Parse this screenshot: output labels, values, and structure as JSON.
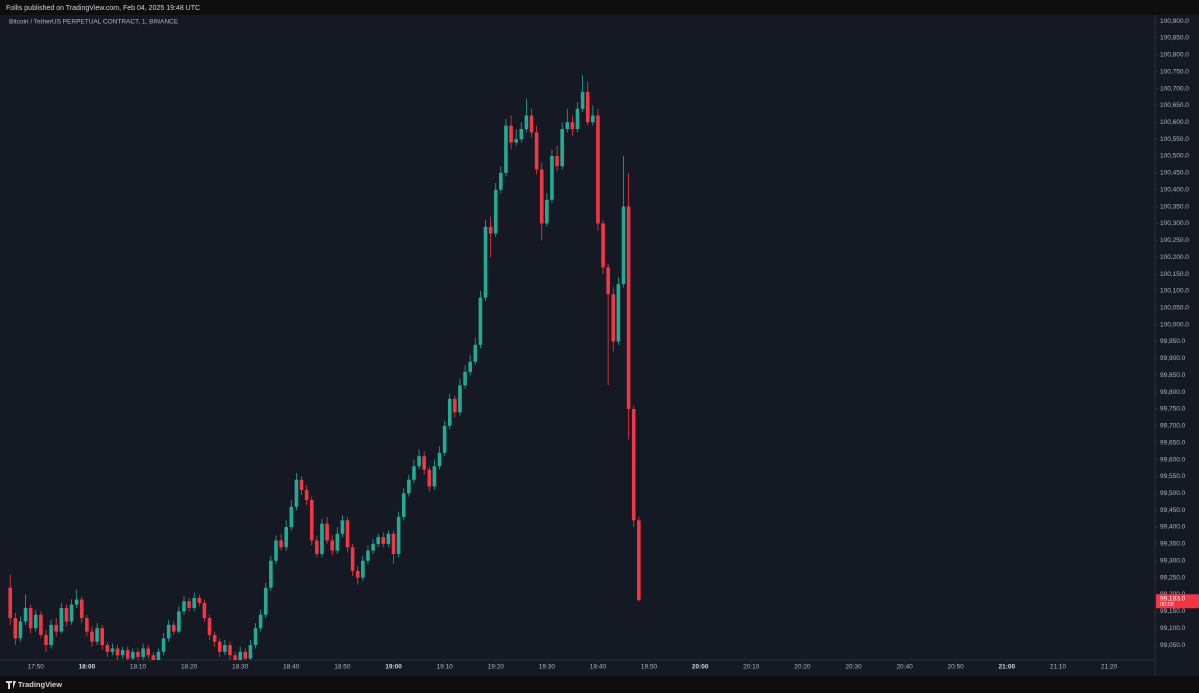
{
  "chart_data": {
    "type": "candlestick",
    "publisher": "Follis published on TradingView.com, Feb 04, 2025 19:48 UTC",
    "title": "Bitcoin / TetherUS PERPETUAL CONTRACT, 1, BINANCE",
    "brand": "TradingView",
    "up_color": "#22ab94",
    "down_color": "#f23645",
    "x": [
      "17:45",
      "17:46",
      "17:47",
      "17:48",
      "17:49",
      "17:50",
      "17:51",
      "17:52",
      "17:53",
      "17:54",
      "17:55",
      "17:56",
      "17:57",
      "17:58",
      "17:59",
      "18:00",
      "18:01",
      "18:02",
      "18:03",
      "18:04",
      "18:05",
      "18:06",
      "18:07",
      "18:08",
      "18:09",
      "18:10",
      "18:11",
      "18:12",
      "18:13",
      "18:14",
      "18:15",
      "18:16",
      "18:17",
      "18:18",
      "18:19",
      "18:20",
      "18:21",
      "18:22",
      "18:23",
      "18:24",
      "18:25",
      "18:26",
      "18:27",
      "18:28",
      "18:29",
      "18:30",
      "18:31",
      "18:32",
      "18:33",
      "18:34",
      "18:35",
      "18:36",
      "18:37",
      "18:38",
      "18:39",
      "18:40",
      "18:41",
      "18:42",
      "18:43",
      "18:44",
      "18:45",
      "18:46",
      "18:47",
      "18:48",
      "18:49",
      "18:50",
      "18:51",
      "18:52",
      "18:53",
      "18:54",
      "18:55",
      "18:56",
      "18:57",
      "18:58",
      "18:59",
      "19:00",
      "19:01",
      "19:02",
      "19:03",
      "19:04",
      "19:05",
      "19:06",
      "19:07",
      "19:08",
      "19:09",
      "19:10",
      "19:11",
      "19:12",
      "19:13",
      "19:14",
      "19:15",
      "19:16",
      "19:17",
      "19:18",
      "19:19",
      "19:20",
      "19:21",
      "19:22",
      "19:23",
      "19:24",
      "19:25",
      "19:26",
      "19:27",
      "19:28",
      "19:29",
      "19:30",
      "19:31",
      "19:32",
      "19:33",
      "19:34",
      "19:35",
      "19:36",
      "19:37",
      "19:38",
      "19:39",
      "19:40",
      "19:41",
      "19:42",
      "19:43",
      "19:44",
      "19:45",
      "19:46",
      "19:47",
      "19:48"
    ],
    "open": [
      99220,
      99130,
      99070,
      99120,
      99160,
      99100,
      99140,
      99080,
      99050,
      99110,
      99090,
      99160,
      99120,
      99170,
      99185,
      99130,
      99090,
      99060,
      99100,
      99050,
      99030,
      99040,
      99020,
      99035,
      99010,
      99030,
      99015,
      99040,
      99020,
      99000,
      99030,
      99070,
      99110,
      99090,
      99150,
      99180,
      99160,
      99190,
      99175,
      99130,
      99080,
      99060,
      99030,
      99050,
      99020,
      99000,
      99030,
      99010,
      99050,
      99100,
      99140,
      99220,
      99300,
      99360,
      99340,
      99400,
      99460,
      99540,
      99510,
      99480,
      99360,
      99320,
      99410,
      99360,
      99330,
      99380,
      99420,
      99340,
      99270,
      99250,
      99300,
      99330,
      99350,
      99370,
      99350,
      99380,
      99320,
      99430,
      99500,
      99540,
      99580,
      99610,
      99570,
      99520,
      99580,
      99620,
      99700,
      99780,
      99740,
      99820,
      99860,
      99890,
      99940,
      100080,
      100290,
      100270,
      100400,
      100450,
      100590,
      100540,
      100550,
      100580,
      100620,
      100570,
      100460,
      100300,
      100370,
      100500,
      100470,
      100580,
      100600,
      100580,
      100640,
      100690,
      100600,
      100620,
      100300,
      100170,
      100090,
      99950,
      100120,
      100350,
      99750,
      99420
    ],
    "high": [
      99260,
      99145,
      99135,
      99200,
      99170,
      99155,
      99150,
      99095,
      99125,
      99130,
      99175,
      99170,
      99185,
      99215,
      99195,
      99140,
      99105,
      99115,
      99110,
      99060,
      99055,
      99050,
      99045,
      99045,
      99040,
      99040,
      99055,
      99050,
      99030,
      99040,
      99085,
      99125,
      99120,
      99165,
      99195,
      99190,
      99205,
      99200,
      99185,
      99140,
      99090,
      99070,
      99065,
      99060,
      99030,
      99045,
      99040,
      99065,
      99115,
      99155,
      99235,
      99315,
      99375,
      99380,
      99420,
      99480,
      99560,
      99550,
      99525,
      99490,
      99375,
      99425,
      99430,
      99375,
      99400,
      99435,
      99430,
      99350,
      99285,
      99315,
      99345,
      99365,
      99380,
      99385,
      99390,
      99390,
      99445,
      99515,
      99555,
      99600,
      99630,
      99625,
      99580,
      99600,
      99640,
      99715,
      99795,
      99790,
      99840,
      99880,
      99910,
      99960,
      100100,
      100310,
      100320,
      100420,
      100470,
      100610,
      100620,
      100580,
      100600,
      100670,
      100640,
      100590,
      100480,
      100390,
      100520,
      100530,
      100600,
      100640,
      100620,
      100660,
      100740,
      100720,
      100650,
      100640,
      100310,
      100180,
      100110,
      100140,
      100500,
      100450,
      99760,
      99430
    ],
    "low": [
      99110,
      99050,
      99060,
      99110,
      99085,
      99090,
      99070,
      99030,
      99040,
      99075,
      99085,
      99105,
      99110,
      99160,
      99115,
      99075,
      99045,
      99050,
      99035,
      99015,
      99020,
      99005,
      99010,
      98995,
      99000,
      99000,
      99005,
      99010,
      98990,
      98995,
      99020,
      99060,
      99080,
      99085,
      99140,
      99150,
      99150,
      99165,
      99120,
      99065,
      99045,
      99015,
      99020,
      99005,
      98990,
      98995,
      98995,
      99000,
      99040,
      99090,
      99130,
      99210,
      99290,
      99330,
      99330,
      99390,
      99450,
      99495,
      99465,
      99345,
      99310,
      99310,
      99350,
      99315,
      99320,
      99370,
      99325,
      99255,
      99230,
      99240,
      99290,
      99320,
      99340,
      99340,
      99340,
      99290,
      99310,
      99420,
      99490,
      99530,
      99570,
      99555,
      99505,
      99510,
      99570,
      99610,
      99690,
      99725,
      99730,
      99810,
      99850,
      99880,
      99930,
      100070,
      100200,
      100260,
      100390,
      100440,
      100520,
      100530,
      100540,
      100570,
      100555,
      100445,
      100250,
      100290,
      100360,
      100455,
      100460,
      100570,
      100560,
      100570,
      100630,
      100590,
      100590,
      100280,
      100150,
      99820,
      99920,
      99940,
      100110,
      99660,
      99400,
      99180
    ],
    "close": [
      99130,
      99070,
      99120,
      99160,
      99100,
      99140,
      99080,
      99050,
      99110,
      99090,
      99160,
      99120,
      99170,
      99185,
      99130,
      99090,
      99060,
      99100,
      99050,
      99030,
      99040,
      99020,
      99035,
      99010,
      99030,
      99015,
      99040,
      99020,
      99000,
      99030,
      99070,
      99110,
      99090,
      99150,
      99180,
      99160,
      99190,
      99175,
      99130,
      99080,
      99060,
      99030,
      99050,
      99020,
      99000,
      99030,
      99010,
      99050,
      99100,
      99140,
      99220,
      99300,
      99360,
      99340,
      99400,
      99460,
      99540,
      99510,
      99480,
      99360,
      99320,
      99410,
      99360,
      99330,
      99380,
      99420,
      99340,
      99270,
      99250,
      99300,
      99330,
      99350,
      99370,
      99350,
      99380,
      99320,
      99430,
      99500,
      99540,
      99580,
      99610,
      99570,
      99520,
      99580,
      99620,
      99700,
      99780,
      99740,
      99820,
      99860,
      99890,
      99940,
      100080,
      100290,
      100270,
      100400,
      100450,
      100590,
      100540,
      100550,
      100580,
      100620,
      100570,
      100460,
      100300,
      100370,
      100500,
      100470,
      100580,
      100600,
      100580,
      100640,
      100690,
      100600,
      100620,
      100300,
      100170,
      100090,
      99950,
      100120,
      100350,
      99750,
      99420,
      99183
    ],
    "last_price_label": "99,183.0",
    "countdown": "00:08",
    "xlim": [
      "17:43",
      "21:29"
    ],
    "xticks": [
      "17:50",
      "18:00",
      "18:10",
      "18:20",
      "18:30",
      "18:40",
      "18:50",
      "19:00",
      "19:10",
      "19:20",
      "19:30",
      "19:40",
      "19:50",
      "20:00",
      "20:10",
      "20:20",
      "20:30",
      "20:40",
      "20:50",
      "21:00",
      "21:10",
      "21:20"
    ],
    "ylim": [
      98985,
      100918
    ],
    "yticks": [
      {
        "value": 100900,
        "label": "100,900.0"
      },
      {
        "value": 100850,
        "label": "100,850.0"
      },
      {
        "value": 100800,
        "label": "100,800.0"
      },
      {
        "value": 100750,
        "label": "100,750.0"
      },
      {
        "value": 100700,
        "label": "100,700.0"
      },
      {
        "value": 100650,
        "label": "100,650.0"
      },
      {
        "value": 100600,
        "label": "100,600.0"
      },
      {
        "value": 100550,
        "label": "100,550.0"
      },
      {
        "value": 100500,
        "label": "100,500.0"
      },
      {
        "value": 100450,
        "label": "100,450.0"
      },
      {
        "value": 100400,
        "label": "100,400.0"
      },
      {
        "value": 100350,
        "label": "100,350.0"
      },
      {
        "value": 100300,
        "label": "100,300.0"
      },
      {
        "value": 100250,
        "label": "100,250.0"
      },
      {
        "value": 100200,
        "label": "100,200.0"
      },
      {
        "value": 100150,
        "label": "100,150.0"
      },
      {
        "value": 100100,
        "label": "100,100.0"
      },
      {
        "value": 100050,
        "label": "100,050.0"
      },
      {
        "value": 100000,
        "label": "100,000.0"
      },
      {
        "value": 99950,
        "label": "99,950.0"
      },
      {
        "value": 99900,
        "label": "99,900.0"
      },
      {
        "value": 99850,
        "label": "99,850.0"
      },
      {
        "value": 99800,
        "label": "99,800.0"
      },
      {
        "value": 99750,
        "label": "99,750.0"
      },
      {
        "value": 99700,
        "label": "99,700.0"
      },
      {
        "value": 99650,
        "label": "99,650.0"
      },
      {
        "value": 99600,
        "label": "99,600.0"
      },
      {
        "value": 99550,
        "label": "99,550.0"
      },
      {
        "value": 99500,
        "label": "99,500.0"
      },
      {
        "value": 99450,
        "label": "99,450.0"
      },
      {
        "value": 99400,
        "label": "99,400.0"
      },
      {
        "value": 99350,
        "label": "99,350.0"
      },
      {
        "value": 99300,
        "label": "99,300.0"
      },
      {
        "value": 99250,
        "label": "99,250.0"
      },
      {
        "value": 99200,
        "label": "99,200.0"
      },
      {
        "value": 99150,
        "label": "99,150.0"
      },
      {
        "value": 99100,
        "label": "99,100.0"
      },
      {
        "value": 99050,
        "label": "99,050.0"
      }
    ],
    "grid": false
  }
}
